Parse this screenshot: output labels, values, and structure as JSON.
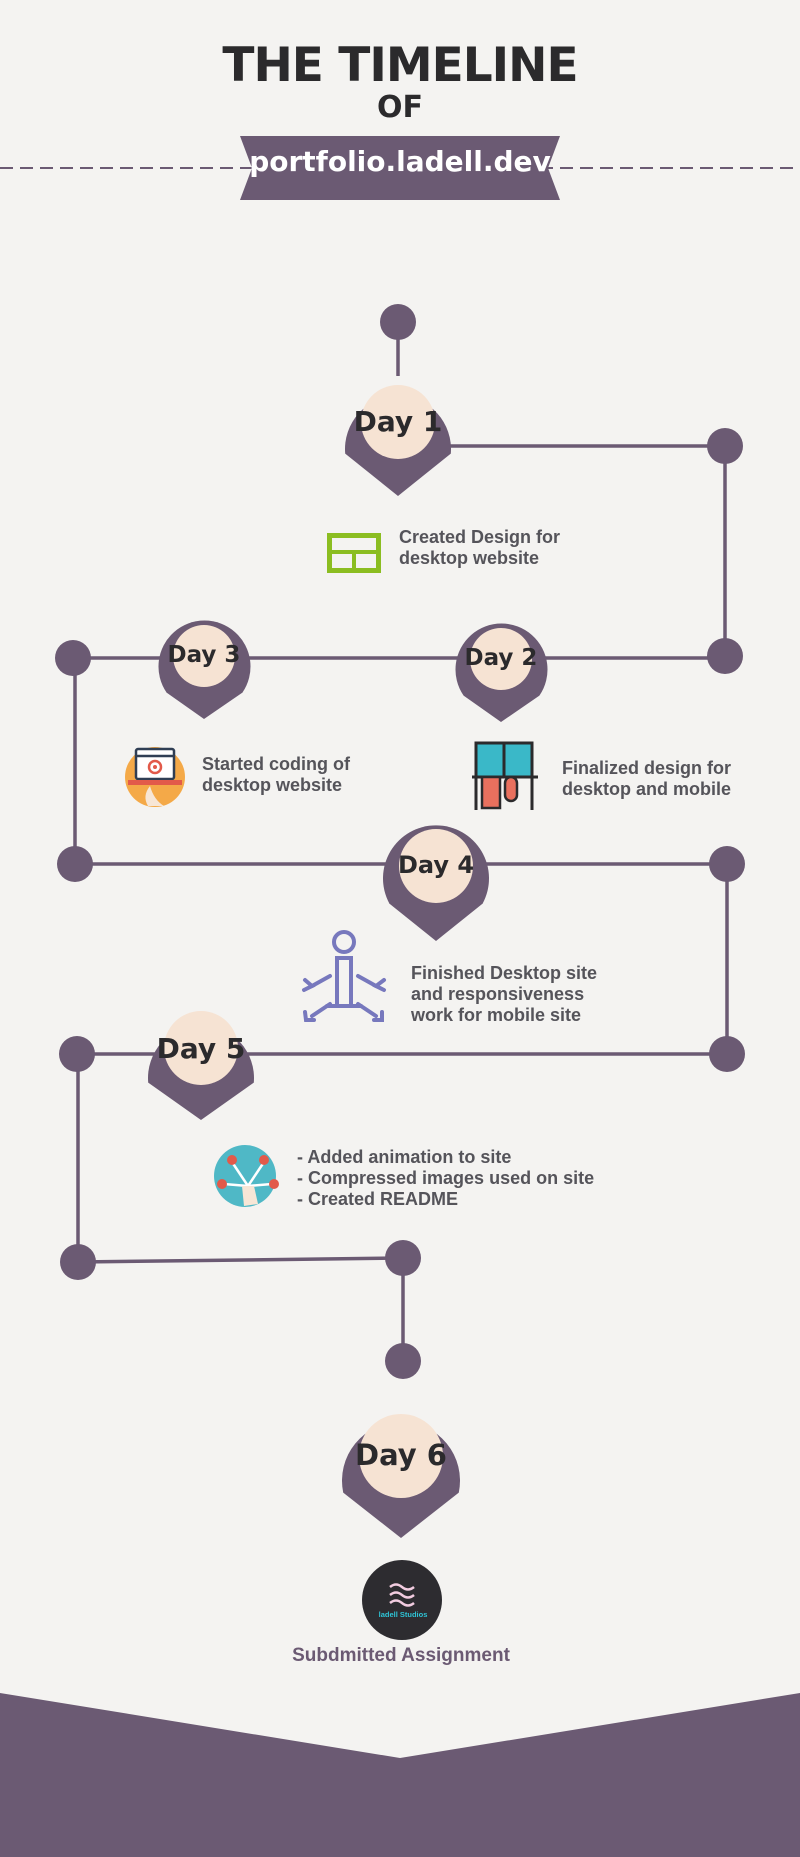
{
  "header": {
    "title_line1": "THE TIMELINE",
    "title_line2": "OF",
    "site": "portfolio.ladell.dev"
  },
  "days": [
    {
      "label": "Day 1",
      "description": [
        "Created Design for",
        "desktop website"
      ],
      "icon": "layout-icon"
    },
    {
      "label": "Day 2",
      "description": [
        "Finalized design for",
        "desktop and mobile"
      ],
      "icon": "mobile-desktop-design-icon"
    },
    {
      "label": "Day 3",
      "description": [
        "Started coding of",
        "desktop website"
      ],
      "icon": "laptop-code-icon"
    },
    {
      "label": "Day 4",
      "description": [
        "Finished Desktop site",
        "and responsiveness",
        "work for mobile site"
      ],
      "icon": "responsive-info-icon"
    },
    {
      "label": "Day 5",
      "description": [
        "- Added animation to site",
        "- Compressed images used on site",
        "- Created README"
      ],
      "icon": "network-hand-icon"
    },
    {
      "label": "Day 6",
      "description": [
        "Subdmitted Assignment"
      ],
      "icon": "ladell-studios-logo"
    }
  ],
  "logo": {
    "text": "ladell Studios"
  },
  "colors": {
    "primary": "#6b5a73",
    "pin_center": "#f6e3d3",
    "background": "#f4f3f1",
    "text_dark": "#2b2a2c",
    "text_body": "#55545a",
    "footer": "#6b5a73"
  }
}
